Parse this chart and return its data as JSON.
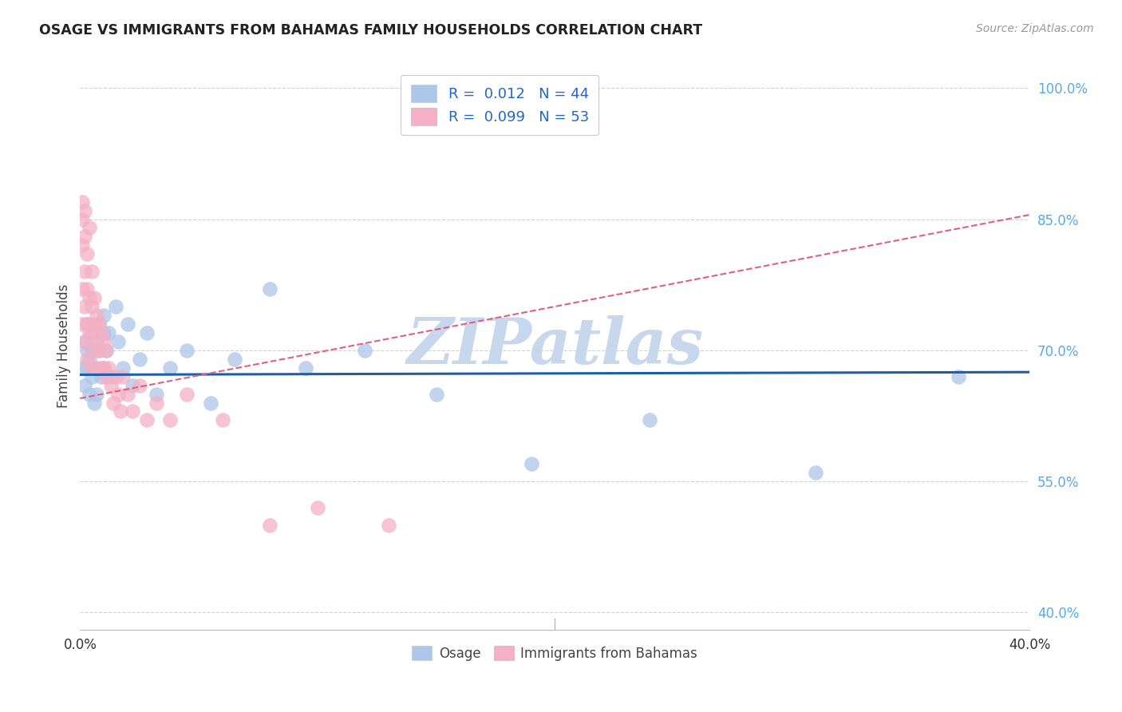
{
  "title": "OSAGE VS IMMIGRANTS FROM BAHAMAS FAMILY HOUSEHOLDS CORRELATION CHART",
  "source": "Source: ZipAtlas.com",
  "ylabel": "Family Households",
  "ytick_labels": [
    "40.0%",
    "55.0%",
    "70.0%",
    "85.0%",
    "100.0%"
  ],
  "ytick_values": [
    0.4,
    0.55,
    0.7,
    0.85,
    1.0
  ],
  "xlim": [
    0.0,
    0.4
  ],
  "ylim": [
    0.38,
    1.03
  ],
  "legend_r_osage": "R =  0.012",
  "legend_n_osage": "N = 44",
  "legend_r_bahamas": "R =  0.099",
  "legend_n_bahamas": "N = 53",
  "osage_color": "#aec6e8",
  "bahamas_color": "#f4b0c4",
  "trend_osage_color": "#1a5fa8",
  "trend_bahamas_color": "#e06080",
  "watermark": "ZIPatlas",
  "watermark_color": "#c8d8ec",
  "grid_color": "#cccccc",
  "background_color": "#ffffff",
  "osage_x": [
    0.001,
    0.002,
    0.002,
    0.003,
    0.003,
    0.003,
    0.004,
    0.004,
    0.005,
    0.005,
    0.005,
    0.006,
    0.006,
    0.007,
    0.007,
    0.008,
    0.008,
    0.009,
    0.01,
    0.01,
    0.01,
    0.011,
    0.012,
    0.013,
    0.015,
    0.016,
    0.018,
    0.02,
    0.022,
    0.025,
    0.028,
    0.032,
    0.038,
    0.045,
    0.055,
    0.065,
    0.08,
    0.095,
    0.12,
    0.15,
    0.19,
    0.24,
    0.31,
    0.37
  ],
  "osage_y": [
    0.68,
    0.71,
    0.66,
    0.7,
    0.68,
    0.73,
    0.65,
    0.69,
    0.72,
    0.67,
    0.7,
    0.64,
    0.68,
    0.71,
    0.65,
    0.7,
    0.73,
    0.67,
    0.72,
    0.68,
    0.74,
    0.7,
    0.72,
    0.67,
    0.75,
    0.71,
    0.68,
    0.73,
    0.66,
    0.69,
    0.72,
    0.65,
    0.68,
    0.7,
    0.64,
    0.69,
    0.77,
    0.68,
    0.7,
    0.65,
    0.57,
    0.62,
    0.56,
    0.67
  ],
  "bahamas_x": [
    0.001,
    0.001,
    0.001,
    0.001,
    0.001,
    0.002,
    0.002,
    0.002,
    0.002,
    0.002,
    0.003,
    0.003,
    0.003,
    0.003,
    0.004,
    0.004,
    0.004,
    0.005,
    0.005,
    0.005,
    0.005,
    0.006,
    0.006,
    0.006,
    0.007,
    0.007,
    0.007,
    0.008,
    0.008,
    0.009,
    0.009,
    0.01,
    0.01,
    0.011,
    0.011,
    0.012,
    0.013,
    0.014,
    0.015,
    0.016,
    0.017,
    0.018,
    0.02,
    0.022,
    0.025,
    0.028,
    0.032,
    0.038,
    0.045,
    0.06,
    0.08,
    0.1,
    0.13
  ],
  "bahamas_y": [
    0.87,
    0.85,
    0.82,
    0.77,
    0.73,
    0.86,
    0.83,
    0.79,
    0.75,
    0.71,
    0.81,
    0.77,
    0.73,
    0.69,
    0.84,
    0.76,
    0.72,
    0.79,
    0.75,
    0.72,
    0.68,
    0.76,
    0.73,
    0.7,
    0.74,
    0.71,
    0.68,
    0.73,
    0.7,
    0.72,
    0.68,
    0.71,
    0.68,
    0.7,
    0.67,
    0.68,
    0.66,
    0.64,
    0.67,
    0.65,
    0.63,
    0.67,
    0.65,
    0.63,
    0.66,
    0.62,
    0.64,
    0.62,
    0.65,
    0.62,
    0.5,
    0.52,
    0.5
  ],
  "trend_osage_x0": 0.0,
  "trend_osage_x1": 0.4,
  "trend_osage_y0": 0.672,
  "trend_osage_y1": 0.675,
  "trend_bahamas_x0": 0.0,
  "trend_bahamas_x1": 0.4,
  "trend_bahamas_y0": 0.645,
  "trend_bahamas_y1": 0.855
}
